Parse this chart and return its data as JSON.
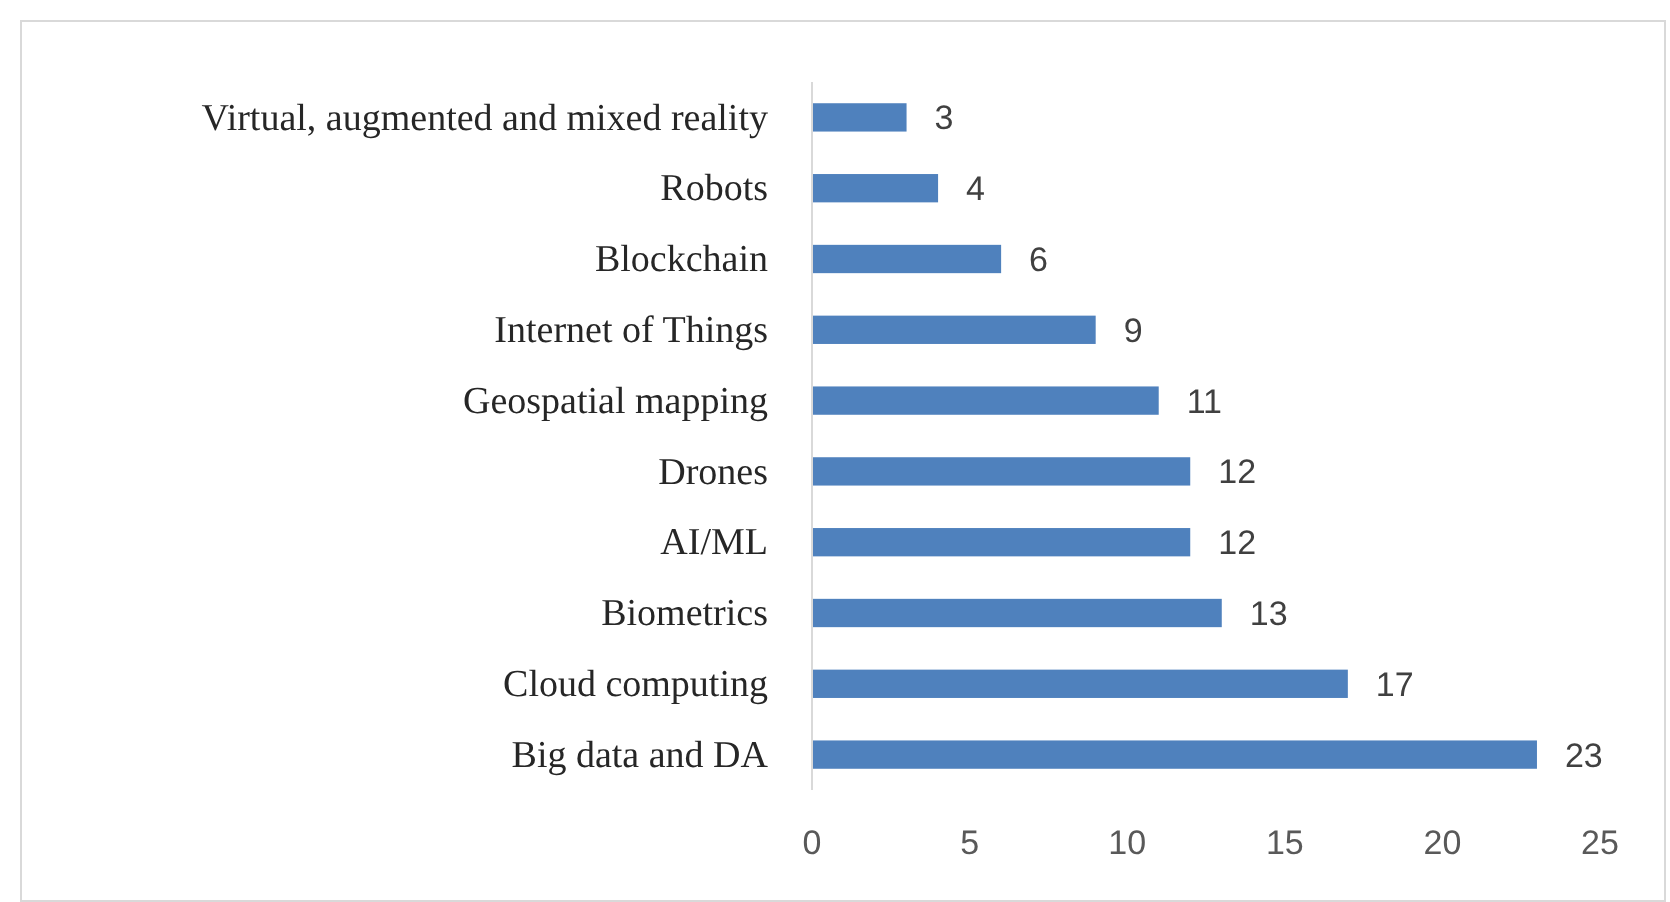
{
  "chart_data": {
    "type": "bar",
    "orientation": "horizontal",
    "categories": [
      "Virtual, augmented and mixed reality",
      "Robots",
      "Blockchain",
      "Internet of Things",
      "Geospatial mapping",
      "Drones",
      "AI/ML",
      "Biometrics",
      "Cloud computing",
      "Big data and DA"
    ],
    "values": [
      3,
      4,
      6,
      9,
      11,
      12,
      12,
      13,
      17,
      23
    ],
    "color": "#4f81bd",
    "xlim": [
      0,
      25
    ],
    "xticks": [
      0,
      5,
      10,
      15,
      20,
      25
    ],
    "data_labels": true
  }
}
